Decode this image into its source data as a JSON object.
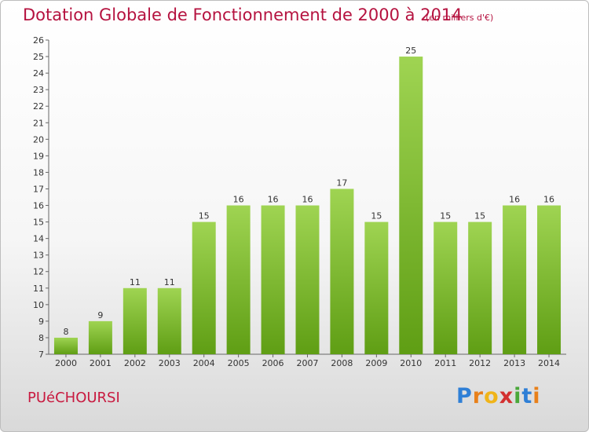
{
  "header": {
    "title": "Dotation Globale de Fonctionnement de 2000 à 2014",
    "subtitle": "(en milliers d'€)"
  },
  "footer": {
    "commune": "PUéCHOURSI",
    "logo_letters": [
      "P",
      "r",
      "o",
      "x",
      "i",
      "t",
      "i"
    ],
    "logo_colors": [
      "#2f7fd6",
      "#e8801a",
      "#f0b419",
      "#d33030",
      "#4aa83a",
      "#2f7fd6",
      "#e8801a"
    ]
  },
  "colors": {
    "bar_light": "#9fd452",
    "bar_dark": "#5f9e14",
    "title": "#b5123f",
    "axis": "#666666"
  },
  "chart_data": {
    "type": "bar",
    "title": "Dotation Globale de Fonctionnement de 2000 à 2014",
    "subtitle": "(en milliers d'€)",
    "xlabel": "",
    "ylabel": "",
    "categories": [
      "2000",
      "2001",
      "2002",
      "2003",
      "2004",
      "2005",
      "2006",
      "2007",
      "2008",
      "2009",
      "2010",
      "2011",
      "2012",
      "2013",
      "2014"
    ],
    "values": [
      8,
      9,
      11,
      11,
      15,
      16,
      16,
      16,
      17,
      15,
      25,
      15,
      15,
      16,
      16
    ],
    "ylim": [
      7,
      26
    ],
    "yticks": [
      7,
      8,
      9,
      10,
      11,
      12,
      13,
      14,
      15,
      16,
      17,
      18,
      19,
      20,
      21,
      22,
      23,
      24,
      25,
      26
    ],
    "grid": false,
    "data_labels": true
  }
}
